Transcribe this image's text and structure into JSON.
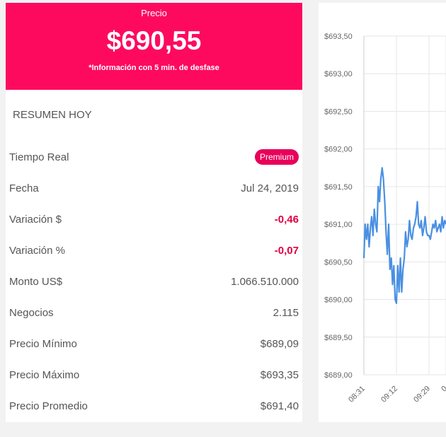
{
  "price": {
    "label": "Precio",
    "value": "$690,55",
    "note": "*Información con 5 min. de desfase",
    "color": "#fd0a5f"
  },
  "summary": {
    "title": "RESUMEN HOY",
    "rows": [
      {
        "label": "Tiempo Real",
        "badge": "Premium"
      },
      {
        "label": "Fecha",
        "value": "Jul 24, 2019"
      },
      {
        "label": "Variación $",
        "value": "-0,46",
        "negative": true
      },
      {
        "label": "Variación %",
        "value": "-0,07",
        "negative": true
      },
      {
        "label": "Monto US$",
        "value": "1.066.510.000"
      },
      {
        "label": "Negocios",
        "value": "2.115"
      },
      {
        "label": "Precio Mínimo",
        "value": "$689,09"
      },
      {
        "label": "Precio Máximo",
        "value": "$693,35"
      },
      {
        "label": "Precio Promedio",
        "value": "$691,40"
      }
    ]
  },
  "chart_data": {
    "type": "line",
    "y_ticks": [
      "$693,50",
      "$693,00",
      "$692,50",
      "$692,00",
      "$691,50",
      "$691,00",
      "$690,50",
      "$690,00",
      "$689,50",
      "$689,00"
    ],
    "x_ticks": [
      "08:31",
      "09:12",
      "09:29",
      "0"
    ],
    "ylim": [
      689.0,
      693.5
    ],
    "x_range_minutes": [
      0,
      63
    ],
    "series": [
      {
        "color": "#4a90e2",
        "points": [
          [
            0,
            690.55
          ],
          [
            1,
            691.0
          ],
          [
            2,
            690.8
          ],
          [
            3,
            691.0
          ],
          [
            4,
            690.7
          ],
          [
            5,
            690.95
          ],
          [
            6,
            691.1
          ],
          [
            7,
            690.85
          ],
          [
            8,
            691.2
          ],
          [
            9,
            691.0
          ],
          [
            10,
            690.9
          ],
          [
            11,
            691.5
          ],
          [
            12,
            691.3
          ],
          [
            13,
            691.6
          ],
          [
            14,
            691.75
          ],
          [
            15,
            691.6
          ],
          [
            16,
            691.3
          ],
          [
            17,
            690.9
          ],
          [
            18,
            690.6
          ],
          [
            19,
            691.0
          ],
          [
            20,
            690.4
          ],
          [
            21,
            690.55
          ],
          [
            22,
            690.2
          ],
          [
            23,
            690.45
          ],
          [
            24,
            690.0
          ],
          [
            25,
            689.95
          ],
          [
            26,
            690.45
          ],
          [
            27,
            690.1
          ],
          [
            28,
            690.55
          ],
          [
            29,
            690.1
          ],
          [
            30,
            690.4
          ],
          [
            31,
            690.55
          ],
          [
            32,
            690.9
          ],
          [
            33,
            690.7
          ],
          [
            34,
            690.8
          ],
          [
            35,
            691.05
          ],
          [
            36,
            690.85
          ],
          [
            37,
            690.8
          ],
          [
            38,
            690.95
          ],
          [
            39,
            691.0
          ],
          [
            40,
            691.1
          ],
          [
            41,
            691.3
          ],
          [
            42,
            691.0
          ],
          [
            43,
            690.95
          ],
          [
            44,
            691.05
          ],
          [
            45,
            690.85
          ],
          [
            46,
            690.95
          ],
          [
            47,
            691.1
          ],
          [
            48,
            690.9
          ],
          [
            49,
            690.85
          ],
          [
            50,
            690.85
          ],
          [
            51,
            690.8
          ],
          [
            52,
            690.9
          ],
          [
            53,
            691.0
          ],
          [
            54,
            690.95
          ],
          [
            55,
            691.05
          ],
          [
            56,
            690.9
          ],
          [
            57,
            690.95
          ],
          [
            58,
            691.0
          ],
          [
            59,
            690.9
          ],
          [
            60,
            691.1
          ],
          [
            61,
            690.95
          ],
          [
            62,
            691.05
          ],
          [
            63,
            691.0
          ]
        ]
      }
    ]
  }
}
